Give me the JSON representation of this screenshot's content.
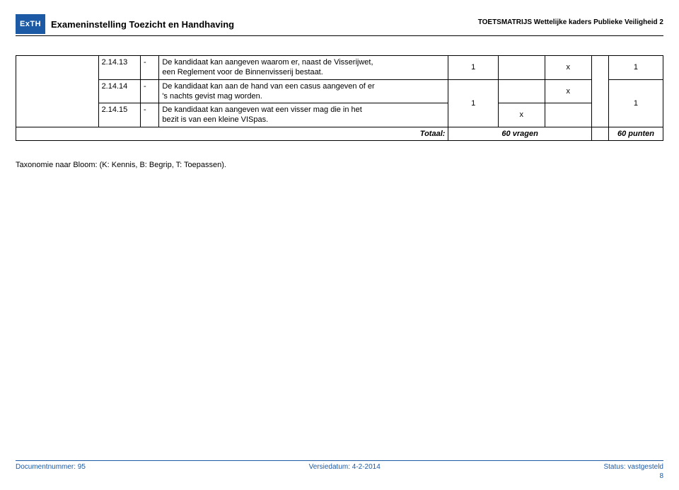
{
  "header": {
    "logo_text": "ExTH",
    "org_name": "Exameninstelling Toezicht en Handhaving",
    "doc_title": "TOETSMATRIJS Wettelijke kaders Publieke Veiligheid 2"
  },
  "table": {
    "rows": [
      {
        "code": "2.14.13",
        "dash": "-",
        "desc1": "De kandidaat kan aangeven waarom er, naast de Visserijwet,",
        "desc2": "een Reglement voor de Binnenvisserij bestaat.",
        "n1": "1",
        "x1": "",
        "x2": "x",
        "n2": "1"
      },
      {
        "code": "2.14.14",
        "dash": "-",
        "desc1": "De kandidaat kan aan de hand van een casus aangeven of er",
        "desc2": "'s nachts gevist mag worden.",
        "n1": "",
        "x1": "",
        "x2": "x",
        "n2": ""
      },
      {
        "code": "2.14.15",
        "dash": "-",
        "desc1": "De kandidaat kan aangeven wat een visser mag die in het",
        "desc2": "bezit is van een kleine VISpas.",
        "n1": "",
        "x1": "x",
        "x2": "",
        "n2": ""
      }
    ],
    "combined": {
      "n1": "1",
      "n2": "1"
    },
    "total": {
      "label": "Totaal:",
      "vragen": "60 vragen",
      "punten": "60 punten"
    }
  },
  "taxonomy": "Taxonomie naar Bloom: (K: Kennis, B: Begrip, T: Toepassen).",
  "footer": {
    "doc_num": "Documentnummer: 95",
    "versie": "Versiedatum: 4-2-2014",
    "status": "Status: vastgesteld",
    "page": "8"
  },
  "colors": {
    "blue": "#1c5aa6"
  }
}
